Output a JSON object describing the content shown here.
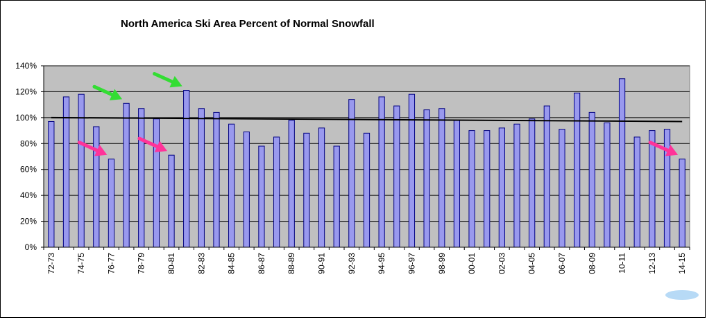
{
  "chart_data": {
    "type": "bar",
    "title": "North America Ski Area Percent of Normal Snowfall",
    "xlabel": "",
    "ylabel": "",
    "ylim": [
      0,
      140
    ],
    "y_tick_values": [
      0,
      20,
      40,
      60,
      80,
      100,
      120,
      140
    ],
    "y_tick_labels": [
      "0%",
      "20%",
      "40%",
      "60%",
      "80%",
      "100%",
      "120%",
      "140%"
    ],
    "grid": true,
    "legend": "none",
    "categories": [
      "72-73",
      "73-74",
      "74-75",
      "75-76",
      "76-77",
      "77-78",
      "78-79",
      "79-80",
      "80-81",
      "81-82",
      "82-83",
      "83-84",
      "84-85",
      "85-86",
      "86-87",
      "87-88",
      "88-89",
      "89-90",
      "90-91",
      "91-92",
      "92-93",
      "93-94",
      "94-95",
      "95-96",
      "96-97",
      "97-98",
      "98-99",
      "99-00",
      "00-01",
      "01-02",
      "02-03",
      "03-04",
      "04-05",
      "05-06",
      "06-07",
      "07-08",
      "08-09",
      "09-10",
      "10-11",
      "11-12",
      "12-13",
      "13-14",
      "14-15"
    ],
    "x_tick_labels": [
      "72-73",
      "74-75",
      "76-77",
      "78-79",
      "80-81",
      "82-83",
      "84-85",
      "86-87",
      "88-89",
      "90-91",
      "92-93",
      "94-95",
      "96-97",
      "98-99",
      "00-01",
      "02-03",
      "04-05",
      "06-07",
      "08-09",
      "10-11",
      "12-13",
      "14-15"
    ],
    "series": [
      {
        "values": [
          97,
          116,
          118,
          93,
          68,
          111,
          107,
          99,
          71,
          121,
          107,
          104,
          95,
          89,
          78,
          85,
          98,
          88,
          92,
          78,
          114,
          88,
          116,
          109,
          118,
          106,
          107,
          98,
          90,
          90,
          92,
          95,
          99,
          109,
          91,
          119,
          104,
          96,
          130,
          85,
          90,
          91,
          68
        ]
      }
    ],
    "trendline": {
      "start": 100,
      "end": 97
    },
    "annotations": [
      {
        "type": "arrow",
        "color": "#33dd33",
        "target": "77-78"
      },
      {
        "type": "arrow",
        "color": "#33dd33",
        "target": "81-82"
      },
      {
        "type": "arrow",
        "color": "#ff3399",
        "target": "76-77"
      },
      {
        "type": "arrow",
        "color": "#ff3399",
        "target": "80-81"
      },
      {
        "type": "arrow",
        "color": "#ff3399",
        "target": "14-15"
      }
    ],
    "colors": {
      "bar_fill": "#9999ee",
      "bar_stroke": "#000080",
      "plot_background": "#c0c0c0",
      "grid": "#000000",
      "trendline": "#000000"
    }
  }
}
